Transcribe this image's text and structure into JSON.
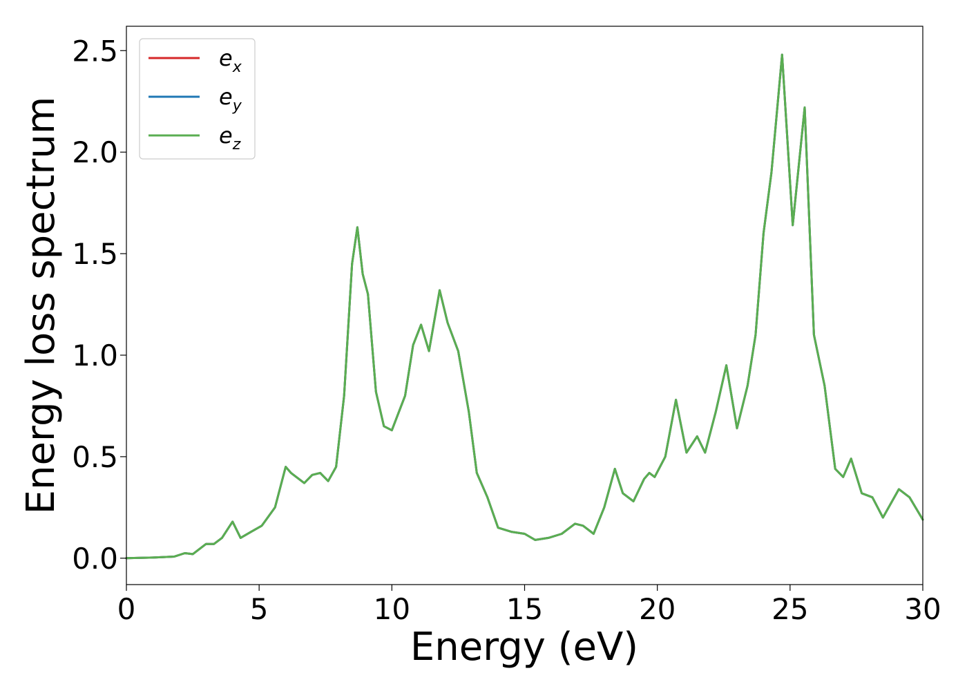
{
  "chart_data": {
    "type": "line",
    "xlabel": "Energy (eV)",
    "ylabel": "Energy loss spectrum",
    "xlim": [
      0,
      30
    ],
    "ylim": [
      -0.13,
      2.62
    ],
    "xticks": [
      0,
      5,
      10,
      15,
      20,
      25,
      30
    ],
    "yticks": [
      0.0,
      0.5,
      1.0,
      1.5,
      2.0,
      2.5
    ],
    "xtick_labels": [
      "0",
      "5",
      "10",
      "15",
      "20",
      "25",
      "30"
    ],
    "ytick_labels": [
      "0.0",
      "0.5",
      "1.0",
      "1.5",
      "2.0",
      "2.5"
    ],
    "grid": false,
    "legend_position": "top-left",
    "x": [
      0.0,
      1.0,
      1.8,
      2.2,
      2.5,
      3.0,
      3.3,
      3.6,
      4.0,
      4.3,
      4.7,
      5.1,
      5.6,
      6.0,
      6.2,
      6.4,
      6.7,
      7.0,
      7.3,
      7.6,
      7.9,
      8.2,
      8.5,
      8.7,
      8.9,
      9.1,
      9.4,
      9.7,
      10.0,
      10.5,
      10.8,
      11.1,
      11.4,
      11.8,
      12.1,
      12.5,
      12.9,
      13.2,
      13.6,
      14.0,
      14.5,
      15.0,
      15.4,
      15.9,
      16.4,
      16.9,
      17.2,
      17.6,
      18.0,
      18.4,
      18.7,
      19.1,
      19.5,
      19.7,
      19.9,
      20.3,
      20.7,
      21.1,
      21.5,
      21.8,
      22.2,
      22.6,
      23.0,
      23.4,
      23.7,
      24.0,
      24.3,
      24.7,
      25.1,
      25.55,
      25.9,
      26.3,
      26.7,
      27.0,
      27.3,
      27.7,
      28.1,
      28.5,
      29.1,
      29.5,
      30.0
    ],
    "series": [
      {
        "name": "e_x",
        "label_base": "e",
        "label_sub": "x",
        "color": "#d62728",
        "y": [
          0.0,
          0.003,
          0.008,
          0.025,
          0.02,
          0.07,
          0.07,
          0.1,
          0.18,
          0.1,
          0.13,
          0.16,
          0.25,
          0.45,
          0.42,
          0.4,
          0.37,
          0.41,
          0.42,
          0.38,
          0.45,
          0.8,
          1.45,
          1.63,
          1.4,
          1.3,
          0.82,
          0.65,
          0.63,
          0.8,
          1.05,
          1.15,
          1.02,
          1.32,
          1.16,
          1.02,
          0.72,
          0.42,
          0.3,
          0.15,
          0.13,
          0.12,
          0.09,
          0.1,
          0.12,
          0.17,
          0.16,
          0.12,
          0.25,
          0.44,
          0.32,
          0.28,
          0.39,
          0.42,
          0.4,
          0.5,
          0.78,
          0.52,
          0.6,
          0.52,
          0.72,
          0.95,
          0.64,
          0.85,
          1.1,
          1.6,
          1.9,
          2.48,
          1.64,
          2.22,
          1.1,
          0.85,
          0.44,
          0.4,
          0.49,
          0.32,
          0.3,
          0.2,
          0.34,
          0.3,
          0.19
        ]
      },
      {
        "name": "e_y",
        "label_base": "e",
        "label_sub": "y",
        "color": "#1f77b4",
        "y": [
          0.0,
          0.003,
          0.008,
          0.025,
          0.02,
          0.07,
          0.07,
          0.1,
          0.18,
          0.1,
          0.13,
          0.16,
          0.25,
          0.45,
          0.42,
          0.4,
          0.37,
          0.41,
          0.42,
          0.38,
          0.45,
          0.8,
          1.45,
          1.63,
          1.4,
          1.3,
          0.82,
          0.65,
          0.63,
          0.8,
          1.05,
          1.15,
          1.02,
          1.32,
          1.16,
          1.02,
          0.72,
          0.42,
          0.3,
          0.15,
          0.13,
          0.12,
          0.09,
          0.1,
          0.12,
          0.17,
          0.16,
          0.12,
          0.25,
          0.44,
          0.32,
          0.28,
          0.39,
          0.42,
          0.4,
          0.5,
          0.78,
          0.52,
          0.6,
          0.52,
          0.72,
          0.95,
          0.64,
          0.85,
          1.1,
          1.6,
          1.9,
          2.48,
          1.64,
          2.22,
          1.1,
          0.85,
          0.44,
          0.4,
          0.49,
          0.32,
          0.3,
          0.2,
          0.34,
          0.3,
          0.19
        ]
      },
      {
        "name": "e_z",
        "label_base": "e",
        "label_sub": "z",
        "color": "#5aae51",
        "y": [
          0.0,
          0.003,
          0.008,
          0.025,
          0.02,
          0.07,
          0.07,
          0.1,
          0.18,
          0.1,
          0.13,
          0.16,
          0.25,
          0.45,
          0.42,
          0.4,
          0.37,
          0.41,
          0.42,
          0.38,
          0.45,
          0.8,
          1.45,
          1.63,
          1.4,
          1.3,
          0.82,
          0.65,
          0.63,
          0.8,
          1.05,
          1.15,
          1.02,
          1.32,
          1.16,
          1.02,
          0.72,
          0.42,
          0.3,
          0.15,
          0.13,
          0.12,
          0.09,
          0.1,
          0.12,
          0.17,
          0.16,
          0.12,
          0.25,
          0.44,
          0.32,
          0.28,
          0.39,
          0.42,
          0.4,
          0.5,
          0.78,
          0.52,
          0.6,
          0.52,
          0.72,
          0.95,
          0.64,
          0.85,
          1.1,
          1.6,
          1.9,
          2.48,
          1.64,
          2.22,
          1.1,
          0.85,
          0.44,
          0.4,
          0.49,
          0.32,
          0.3,
          0.2,
          0.34,
          0.3,
          0.19
        ]
      }
    ]
  }
}
